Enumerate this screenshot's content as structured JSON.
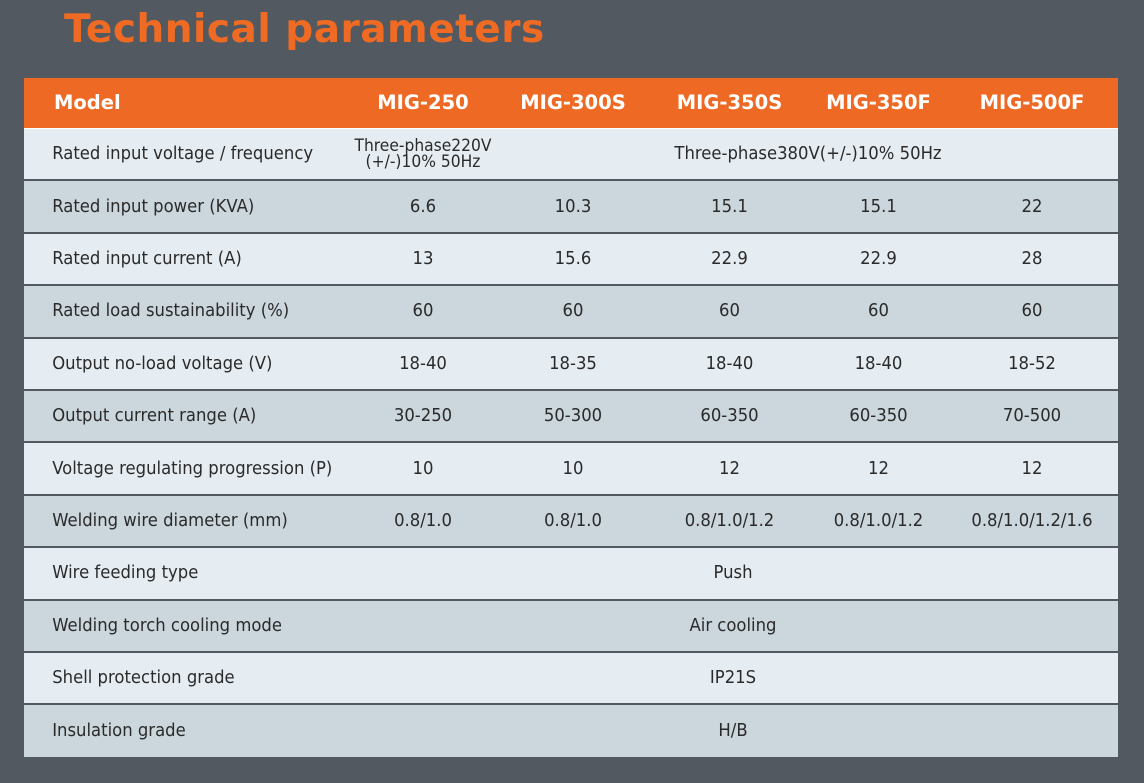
{
  "title": "Technical parameters",
  "colors": {
    "accent": "#ee6a24",
    "background": "#535961",
    "row_light": "#e6edf2",
    "row_dark": "#cbd6dd"
  },
  "table": {
    "header": [
      "Model",
      "MIG-250",
      "MIG-300S",
      "MIG-350S",
      "MIG-350F",
      "MIG-500F"
    ],
    "rows": [
      {
        "label": "Rated input voltage / frequency",
        "cells": [
          {
            "text_line1": "Three-phase220V",
            "text_line2": "(+/-)10% 50Hz",
            "span": 1
          },
          {
            "text": "Three-phase380V(+/-)10% 50Hz",
            "span": 4
          }
        ]
      },
      {
        "label": "Rated input power (KVA)",
        "cells": [
          {
            "text": "6.6"
          },
          {
            "text": "10.3"
          },
          {
            "text": "15.1"
          },
          {
            "text": "15.1"
          },
          {
            "text": "22"
          }
        ]
      },
      {
        "label": "Rated input current (A)",
        "cells": [
          {
            "text": "13"
          },
          {
            "text": "15.6"
          },
          {
            "text": "22.9"
          },
          {
            "text": "22.9"
          },
          {
            "text": "28"
          }
        ]
      },
      {
        "label": "Rated load sustainability (%)",
        "cells": [
          {
            "text": "60"
          },
          {
            "text": "60"
          },
          {
            "text": "60"
          },
          {
            "text": "60"
          },
          {
            "text": "60"
          }
        ]
      },
      {
        "label": "Output no-load voltage (V)",
        "cells": [
          {
            "text": "18-40"
          },
          {
            "text": "18-35"
          },
          {
            "text": "18-40"
          },
          {
            "text": "18-40"
          },
          {
            "text": "18-52"
          }
        ]
      },
      {
        "label": "Output current range (A)",
        "cells": [
          {
            "text": "30-250"
          },
          {
            "text": "50-300"
          },
          {
            "text": "60-350"
          },
          {
            "text": "60-350"
          },
          {
            "text": "70-500"
          }
        ]
      },
      {
        "label": "Voltage regulating progression (P)",
        "cells": [
          {
            "text": "10"
          },
          {
            "text": "10"
          },
          {
            "text": "12"
          },
          {
            "text": "12"
          },
          {
            "text": "12"
          }
        ]
      },
      {
        "label": "Welding wire diameter (mm)",
        "cells": [
          {
            "text": "0.8/1.0"
          },
          {
            "text": "0.8/1.0"
          },
          {
            "text": "0.8/1.0/1.2"
          },
          {
            "text": "0.8/1.0/1.2"
          },
          {
            "text": "0.8/1.0/1.2/1.6"
          }
        ]
      },
      {
        "label": "Wire feeding type",
        "cells": [
          {
            "text": "Push",
            "span": 5
          }
        ]
      },
      {
        "label": "Welding torch cooling mode",
        "cells": [
          {
            "text": "Air cooling",
            "span": 5
          }
        ]
      },
      {
        "label": "Shell protection grade",
        "cells": [
          {
            "text": "IP21S",
            "span": 5
          }
        ]
      },
      {
        "label": "Insulation grade",
        "cells": [
          {
            "text": "H/B",
            "span": 5
          }
        ]
      }
    ]
  }
}
